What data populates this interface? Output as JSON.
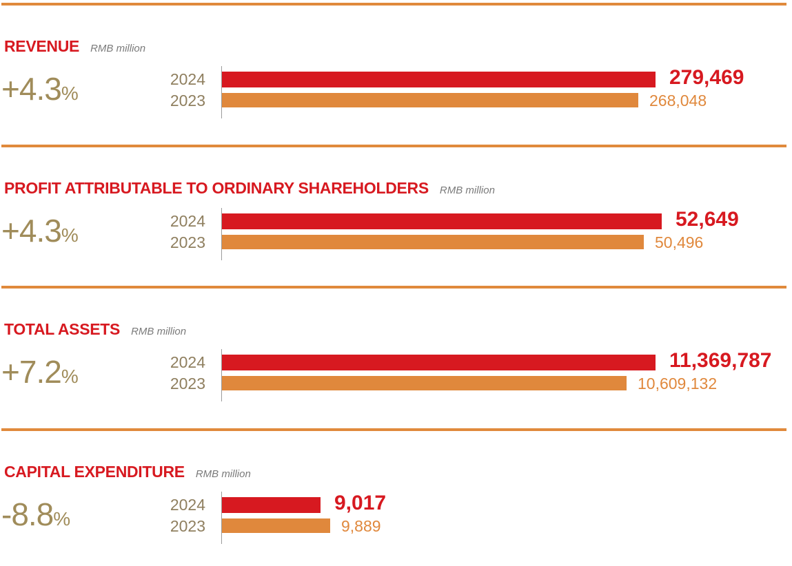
{
  "colors": {
    "rule": "#e08a3c",
    "title": "#d71920",
    "change": "#a08c5a",
    "bar_current": "#d71920",
    "bar_previous": "#e0883c"
  },
  "chart_data": [
    {
      "type": "bar",
      "title": "REVENUE",
      "unit": "RMB million",
      "change": "+4.3",
      "change_suffix": "%",
      "categories": [
        "2024",
        "2023"
      ],
      "values": [
        279469,
        268048
      ],
      "labels": [
        "279,469",
        "268,048"
      ],
      "xlim": [
        0,
        282000
      ]
    },
    {
      "type": "bar",
      "title": "PROFIT ATTRIBUTABLE TO ORDINARY SHAREHOLDERS",
      "unit": "RMB million",
      "change": "+4.3",
      "change_suffix": "%",
      "categories": [
        "2024",
        "2023"
      ],
      "values": [
        52649,
        50496
      ],
      "labels": [
        "52,649",
        "50,496"
      ],
      "xlim": [
        0,
        52400
      ]
    },
    {
      "type": "bar",
      "title": "TOTAL ASSETS",
      "unit": "RMB million",
      "change": "+7.2",
      "change_suffix": "%",
      "categories": [
        "2024",
        "2023"
      ],
      "values": [
        11369787,
        10609132
      ],
      "labels": [
        "11,369,787",
        "10,609,132"
      ],
      "xlim": [
        0,
        11470000
      ]
    },
    {
      "type": "bar",
      "title": "CAPITAL EXPENDITURE",
      "unit": "RMB million",
      "change": "-8.8",
      "change_suffix": "%",
      "categories": [
        "2024",
        "2023"
      ],
      "values": [
        9017,
        9889
      ],
      "labels": [
        "9,017",
        "9,889"
      ],
      "xlim": [
        0,
        40000
      ]
    }
  ]
}
